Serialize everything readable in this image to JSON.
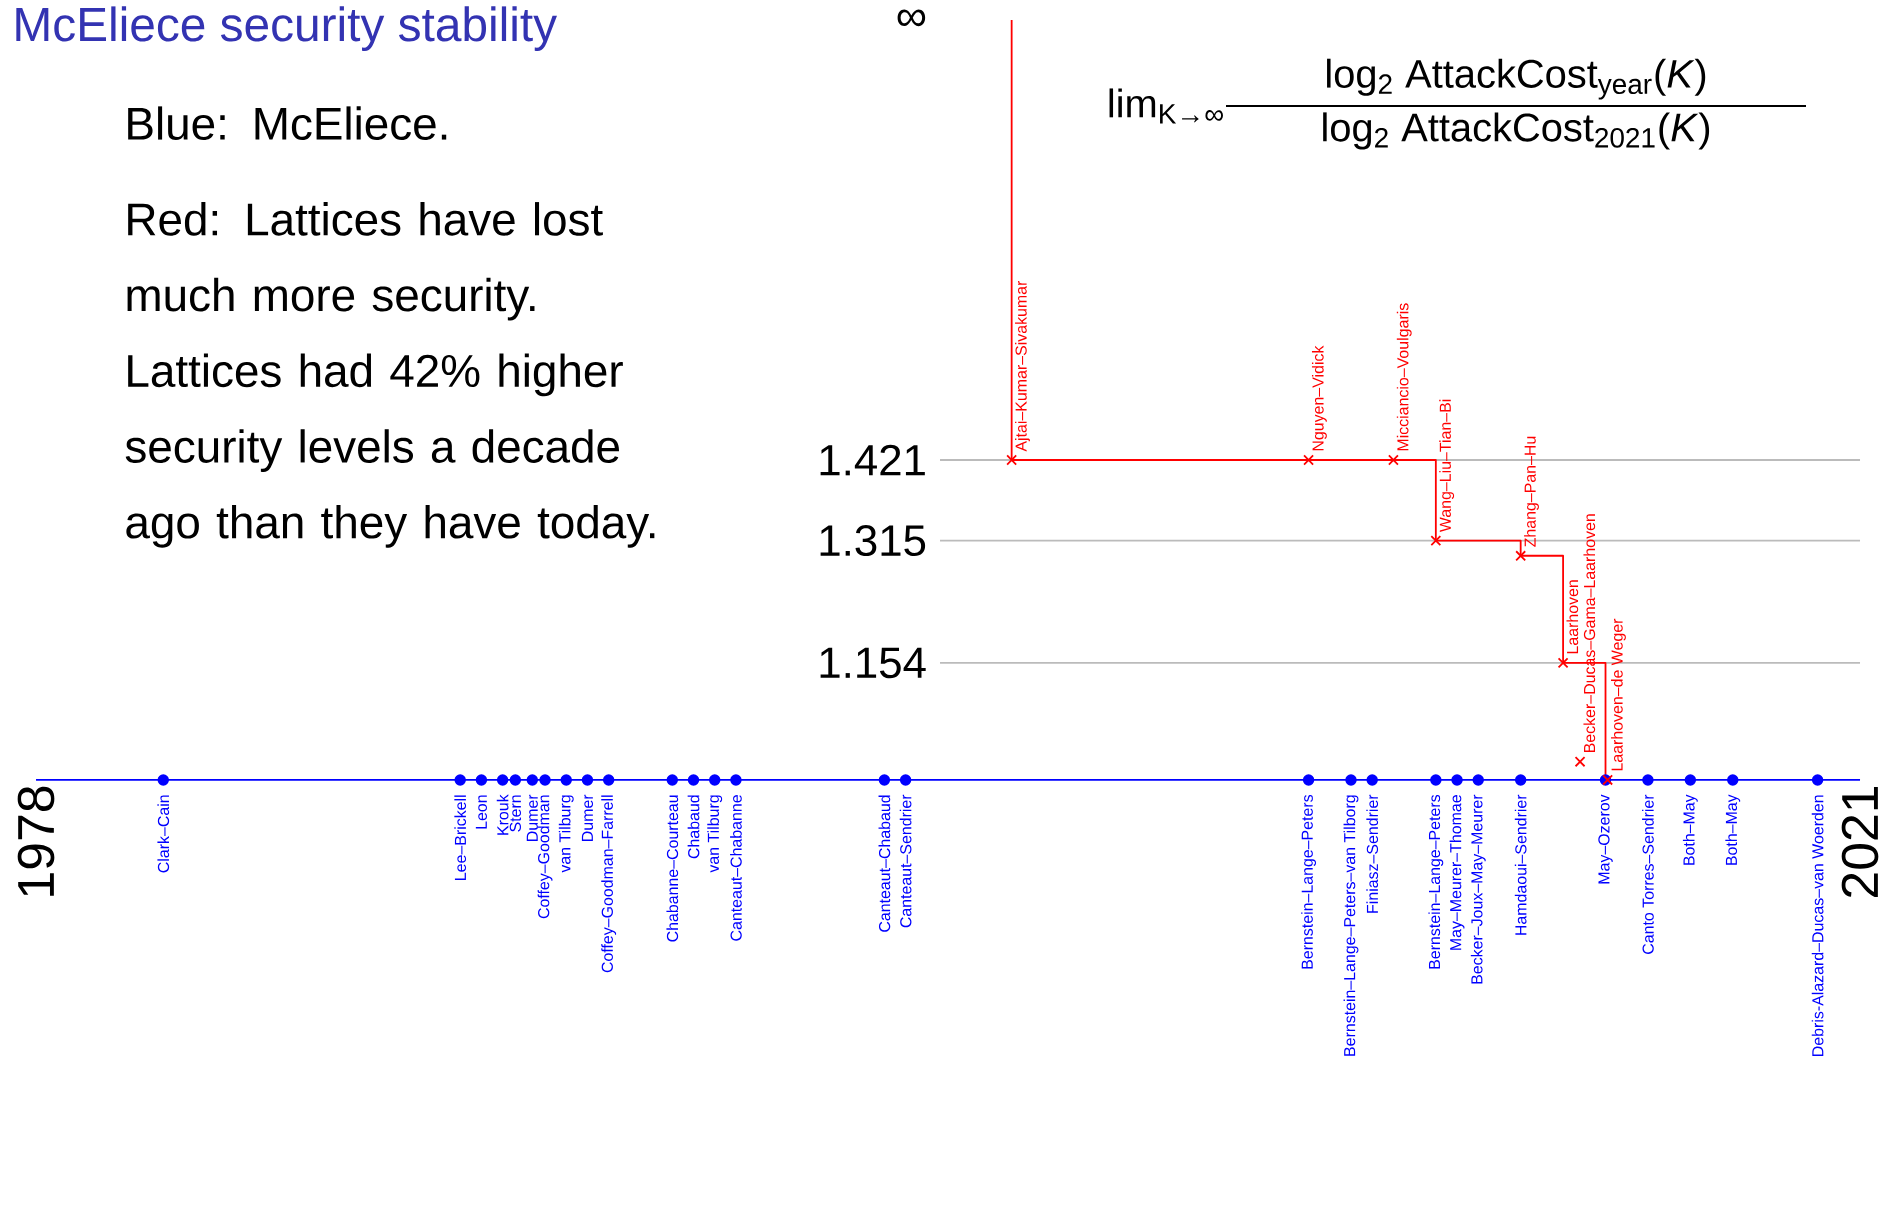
{
  "chart_data": {
    "type": "scatter",
    "title": "McEliece security stability",
    "xlim": [
      1978,
      2021
    ],
    "xticks": [
      1978,
      2021
    ],
    "ylim": [
      1.0,
      2.0
    ],
    "yticks": [
      1.154,
      1.315,
      1.421,
      {
        "value": 2.0,
        "label": "∞"
      }
    ],
    "ref_lines": [
      {
        "axis": "y",
        "value": 1.154,
        "color": "#bbbbbb"
      },
      {
        "axis": "y",
        "value": 1.315,
        "color": "#bbbbbb"
      },
      {
        "axis": "y",
        "value": 1.421,
        "color": "#bbbbbb"
      }
    ],
    "series": [
      {
        "type": "scatter",
        "marker": "circle",
        "color": "#0000ff",
        "x": [
          1981.0,
          1988.0,
          1988.5,
          1989.0,
          1989.3,
          1989.7,
          1990.0,
          1990.5,
          1991.0,
          1991.5,
          1993.0,
          1993.5,
          1994.0,
          1994.5,
          1998.0,
          1998.5,
          2008.0,
          2009.0,
          2009.5,
          2011.0,
          2011.5,
          2012.0,
          2013.0,
          2015.0,
          2016.0,
          2017.0,
          2018.0,
          2020.0
        ],
        "values": [
          1,
          1,
          1,
          1,
          1,
          1,
          1,
          1,
          1,
          1,
          1,
          1,
          1,
          1,
          1,
          1,
          1,
          1,
          1,
          1,
          1,
          1,
          1,
          1,
          1,
          1,
          1,
          1
        ]
      },
      {
        "type": "step",
        "color": "#ff0000",
        "x": [
          2001,
          2001,
          2011,
          2013,
          2014,
          2015
        ],
        "values": [
          2.0,
          1.421,
          1.315,
          1.295,
          1.154,
          1.0
        ]
      },
      {
        "type": "scatter",
        "marker": "cross",
        "color": "#ff0000",
        "x": [
          2001,
          2008,
          2010,
          2011,
          2013,
          2014,
          2014.4,
          2015.05
        ],
        "values": [
          1.421,
          1.421,
          1.421,
          1.315,
          1.295,
          1.154,
          1.024,
          1.0
        ]
      }
    ],
    "annotations": [
      "Blue: McEliece.",
      "Red: Lattices have lost much more security. Lattices had 42% higher security levels a decade ago than they have today.",
      "lim$_{K→∞}$",
      "log$_{2}$ AttackCost$_{year}$(*K*)",
      "log$_{2}$ AttackCost$_{2021}$(*K*)",
      {
        "text": "Clark–Cain",
        "x": 1981.0,
        "y": 1
      },
      {
        "text": "Lee–Brickell",
        "x": 1988.0,
        "y": 1
      },
      {
        "text": "Leon",
        "x": 1988.5,
        "y": 1
      },
      {
        "text": "Krouk",
        "x": 1989.0,
        "y": 1
      },
      {
        "text": "Stern",
        "x": 1989.3,
        "y": 1
      },
      {
        "text": "Dumer",
        "x": 1989.7,
        "y": 1
      },
      {
        "text": "Coffey–Goodman",
        "x": 1990.0,
        "y": 1
      },
      {
        "text": "van Tilburg",
        "x": 1990.5,
        "y": 1
      },
      {
        "text": "Dumer",
        "x": 1991.0,
        "y": 1
      },
      {
        "text": "Coffey–Goodman–Farrell",
        "x": 1991.5,
        "y": 1
      },
      {
        "text": "Chabanne–Courteau",
        "x": 1993.0,
        "y": 1
      },
      {
        "text": "Chabaud",
        "x": 1993.5,
        "y": 1
      },
      {
        "text": "van Tilburg",
        "x": 1994.0,
        "y": 1
      },
      {
        "text": "Canteaut–Chabanne",
        "x": 1994.5,
        "y": 1
      },
      {
        "text": "Canteaut–Chabaud",
        "x": 1998.0,
        "y": 1
      },
      {
        "text": "Canteaut–Sendrier",
        "x": 1998.5,
        "y": 1
      },
      {
        "text": "Bernstein–Lange–Peters",
        "x": 2008.0,
        "y": 1
      },
      {
        "text": "Bernstein–Lange–Peters–van Tilborg",
        "x": 2009.0,
        "y": 1
      },
      {
        "text": "Finiasz–Sendrier",
        "x": 2009.5,
        "y": 1
      },
      {
        "text": "Bernstein–Lange–Peters",
        "x": 2011.0,
        "y": 1
      },
      {
        "text": "May–Meurer–Thomae",
        "x": 2011.5,
        "y": 1
      },
      {
        "text": "Becker–Joux–May–Meurer",
        "x": 2012.0,
        "y": 1
      },
      {
        "text": "Hamdaoui–Sendrier",
        "x": 2013.0,
        "y": 1
      },
      {
        "text": "May–Ozerov",
        "x": 2015.0,
        "y": 1
      },
      {
        "text": "Canto Torres–Sendrier",
        "x": 2016.0,
        "y": 1
      },
      {
        "text": "Both–May",
        "x": 2017.0,
        "y": 1
      },
      {
        "text": "Both–May",
        "x": 2018.0,
        "y": 1
      },
      {
        "text": "Debris-Alazard–Ducas–van Woerden",
        "x": 2020.0,
        "y": 1
      },
      {
        "text": "Ajtai–Kumar–Sivakumar",
        "x": 2001,
        "y": 1.421
      },
      {
        "text": "Nguyen–Vidick",
        "x": 2008,
        "y": 1.421
      },
      {
        "text": "Micciancio–Voulgaris",
        "x": 2010,
        "y": 1.421
      },
      {
        "text": "Wang–Liu–Tian–Bi",
        "x": 2011,
        "y": 1.315
      },
      {
        "text": "Zhang–Pan–Hu",
        "x": 2013,
        "y": 1.295
      },
      {
        "text": "Laarhoven",
        "x": 2014,
        "y": 1.154
      },
      {
        "text": "Becker–Ducas–Gama–Laarhoven",
        "x": 2014.4,
        "y": 1.024
      },
      {
        "text": "Laarhoven–de Weger",
        "x": 2015.05,
        "y": 1.0
      }
    ]
  }
}
